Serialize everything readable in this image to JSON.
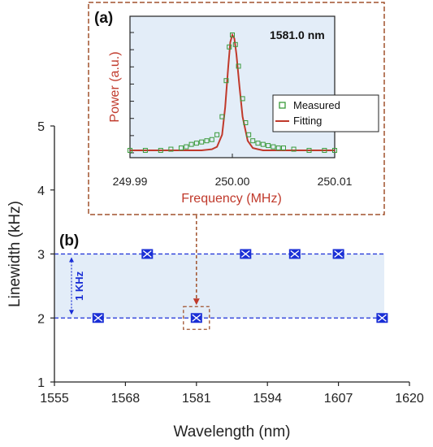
{
  "colors": {
    "accent": "#1a2fd6",
    "band": "#e3edf8",
    "frame": "#a0522d",
    "fit": "#c0392b",
    "measured": "#3a9a3a",
    "inset_label": "#c0392b"
  },
  "chart_data": [
    {
      "type": "scatter",
      "panel_label": "(b)",
      "xlabel": "Wavelength (nm)",
      "ylabel": "Linewidth (kHz)",
      "xlim": [
        1555,
        1620
      ],
      "ylim": [
        1,
        5
      ],
      "xticks": [
        "1555",
        "1568",
        "1581",
        "1594",
        "1607",
        "1620"
      ],
      "yticks": [
        "1",
        "2",
        "3",
        "4",
        "5"
      ],
      "x": [
        1563,
        1572,
        1581,
        1590,
        1599,
        1607,
        1615
      ],
      "y": [
        2,
        3,
        2,
        3,
        3,
        3,
        2
      ],
      "reference_lines": [
        2,
        3
      ],
      "band": [
        2,
        3
      ],
      "annotation": "1 KHz",
      "highlighted_x": 1581,
      "grid": false
    },
    {
      "type": "line",
      "panel_label": "(a)",
      "title": "1581.0 nm",
      "xlabel": "Frequency (MHz)",
      "ylabel": "Power (a.u.)",
      "xlim": [
        249.99,
        250.01
      ],
      "xticks": [
        "249.99",
        "250.00",
        "250.01"
      ],
      "ylim": [
        0,
        1
      ],
      "legend": [
        "Measured",
        "Fitting"
      ],
      "legend_position": "right",
      "series": [
        {
          "name": "Measured",
          "x": [
            249.99,
            249.9915,
            249.993,
            249.994,
            249.995,
            249.9955,
            249.996,
            249.9965,
            249.997,
            249.9975,
            249.998,
            249.9985,
            249.999,
            249.9994,
            249.9997,
            250.0,
            250.0003,
            250.0006,
            250.001,
            250.0013,
            250.0016,
            250.002,
            250.0025,
            250.003,
            250.0035,
            250.004,
            250.0045,
            250.005,
            250.006,
            250.0075,
            250.009,
            250.01
          ],
          "y": [
            0.02,
            0.02,
            0.02,
            0.03,
            0.04,
            0.05,
            0.07,
            0.08,
            0.09,
            0.1,
            0.11,
            0.15,
            0.3,
            0.6,
            0.88,
            0.98,
            0.9,
            0.72,
            0.45,
            0.25,
            0.15,
            0.1,
            0.08,
            0.07,
            0.06,
            0.05,
            0.04,
            0.04,
            0.03,
            0.02,
            0.02,
            0.02
          ]
        },
        {
          "name": "Fitting",
          "x": [
            249.99,
            249.993,
            249.996,
            249.997,
            249.998,
            249.9985,
            249.999,
            249.9993,
            249.9996,
            249.9998,
            250.0,
            250.0002,
            250.0004,
            250.0007,
            250.001,
            250.0015,
            250.002,
            250.0025,
            250.003,
            250.004,
            250.006,
            250.01
          ],
          "y": [
            0.02,
            0.02,
            0.02,
            0.02,
            0.03,
            0.05,
            0.15,
            0.38,
            0.72,
            0.92,
            0.98,
            0.95,
            0.82,
            0.55,
            0.3,
            0.1,
            0.04,
            0.03,
            0.02,
            0.02,
            0.02,
            0.02
          ]
        }
      ]
    }
  ]
}
